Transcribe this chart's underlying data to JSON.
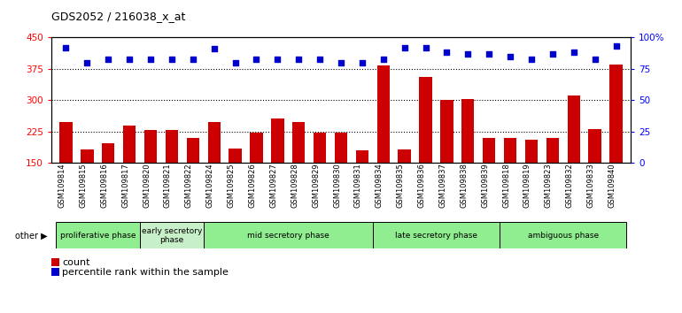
{
  "title": "GDS2052 / 216038_x_at",
  "samples": [
    "GSM109814",
    "GSM109815",
    "GSM109816",
    "GSM109817",
    "GSM109820",
    "GSM109821",
    "GSM109822",
    "GSM109824",
    "GSM109825",
    "GSM109826",
    "GSM109827",
    "GSM109828",
    "GSM109829",
    "GSM109830",
    "GSM109831",
    "GSM109834",
    "GSM109835",
    "GSM109836",
    "GSM109837",
    "GSM109838",
    "GSM109839",
    "GSM109818",
    "GSM109819",
    "GSM109823",
    "GSM109832",
    "GSM109833",
    "GSM109840"
  ],
  "bar_values": [
    248,
    183,
    196,
    240,
    228,
    228,
    210,
    248,
    185,
    222,
    257,
    248,
    222,
    222,
    180,
    383,
    183,
    355,
    300,
    303,
    210,
    210,
    205,
    210,
    312,
    230,
    385
  ],
  "dot_values": [
    92,
    80,
    83,
    83,
    83,
    83,
    83,
    91,
    80,
    83,
    83,
    83,
    83,
    80,
    80,
    83,
    92,
    92,
    88,
    87,
    87,
    85,
    83,
    87,
    88,
    83,
    93
  ],
  "phases": [
    {
      "label": "proliferative phase",
      "start": 0,
      "end": 4,
      "color": "#90EE90"
    },
    {
      "label": "early secretory\nphase",
      "start": 4,
      "end": 7,
      "color": "#c8f0c8"
    },
    {
      "label": "mid secretory phase",
      "start": 7,
      "end": 15,
      "color": "#90EE90"
    },
    {
      "label": "late secretory phase",
      "start": 15,
      "end": 21,
      "color": "#90EE90"
    },
    {
      "label": "ambiguous phase",
      "start": 21,
      "end": 27,
      "color": "#90EE90"
    }
  ],
  "ylim_left": [
    150,
    450
  ],
  "yticks_left": [
    150,
    225,
    300,
    375,
    450
  ],
  "ylim_right": [
    0,
    100
  ],
  "yticks_right": [
    0,
    25,
    50,
    75,
    100
  ],
  "bar_color": "#CC0000",
  "dot_color": "#0000CC",
  "background_color": "#ffffff",
  "dotted_lines": [
    225,
    300,
    375
  ]
}
